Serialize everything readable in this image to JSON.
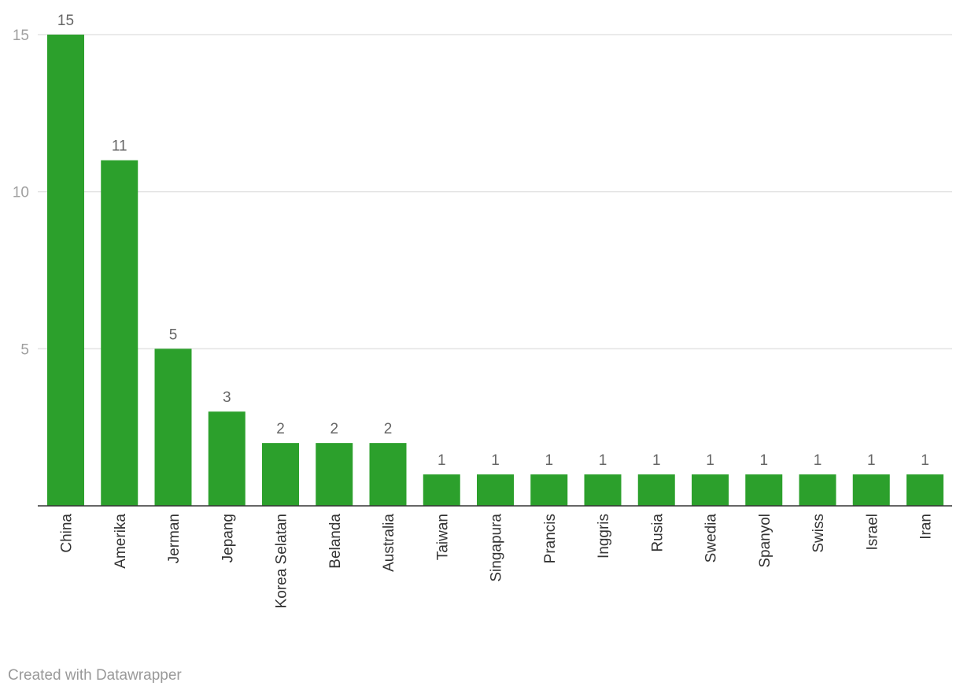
{
  "colors": {
    "bar": "#2ca02c",
    "grid": "#e3e3e3",
    "axis": "#333333"
  },
  "chart_data": {
    "type": "bar",
    "categories": [
      "China",
      "Amerika",
      "Jerman",
      "Jepang",
      "Korea Selatan",
      "Belanda",
      "Australia",
      "Taiwan",
      "Singapura",
      "Prancis",
      "Inggris",
      "Rusia",
      "Swedia",
      "Spanyol",
      "Swiss",
      "Israel",
      "Iran"
    ],
    "values": [
      15,
      11,
      5,
      3,
      2,
      2,
      2,
      1,
      1,
      1,
      1,
      1,
      1,
      1,
      1,
      1,
      1
    ],
    "yticks": [
      5,
      10,
      15
    ],
    "ylim": [
      0,
      15
    ],
    "grid": true,
    "data_labels": true,
    "x_labels_rotated": true,
    "credit": "Created with Datawrapper"
  }
}
